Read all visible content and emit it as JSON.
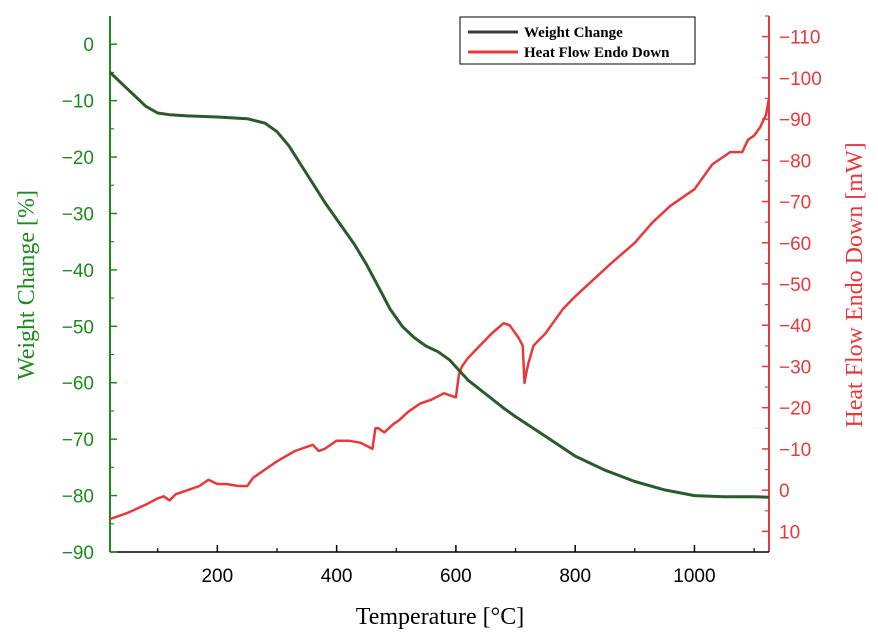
{
  "chart_data": {
    "type": "line",
    "xlabel": "Temperature [°C]",
    "ylabel_left": "Weight Change [%]",
    "ylabel_right": "Heat Flow Endo Down [mW]",
    "xlim": [
      20,
      1125
    ],
    "ylim_left": [
      -90,
      5
    ],
    "ylim_right": [
      15,
      -115
    ],
    "x_ticks": [
      200,
      400,
      600,
      800,
      1000
    ],
    "x_tick_labels": [
      "200",
      "400",
      "600",
      "800",
      "1000"
    ],
    "y_left_ticks": [
      0,
      -10,
      -20,
      -30,
      -40,
      -50,
      -60,
      -70,
      -80,
      -90
    ],
    "y_left_tick_labels": [
      "0",
      "−10",
      "−20",
      "−30",
      "−40",
      "−50",
      "−60",
      "−70",
      "−80",
      "−90"
    ],
    "y_right_ticks": [
      10,
      0,
      -10,
      -20,
      -30,
      -40,
      -50,
      -60,
      -70,
      -80,
      -90,
      -100,
      -110
    ],
    "y_right_tick_labels": [
      "10",
      "0",
      "−10",
      "−20",
      "−30",
      "−40",
      "−50",
      "−60",
      "−70",
      "−80",
      "−90",
      "−100",
      "−110"
    ],
    "legend_position": "top-right",
    "grid": false,
    "colors": {
      "left_axis": "#1e8a1e",
      "right_axis": "#e8383c",
      "weight_line": "#2d5a2d",
      "heat_line": "#e8383c",
      "legend_weight": "#3c3c3c"
    },
    "series": [
      {
        "name": "Weight Change",
        "axis": "left",
        "x": [
          20,
          40,
          60,
          80,
          100,
          120,
          150,
          200,
          250,
          280,
          300,
          320,
          350,
          380,
          400,
          430,
          450,
          470,
          490,
          510,
          530,
          550,
          570,
          590,
          600,
          620,
          650,
          680,
          700,
          750,
          800,
          850,
          900,
          950,
          1000,
          1050,
          1100,
          1125
        ],
        "y": [
          -5,
          -7,
          -9,
          -11,
          -12.2,
          -12.5,
          -12.7,
          -12.9,
          -13.2,
          -14,
          -15.5,
          -18,
          -23,
          -28,
          -31,
          -35.5,
          -39,
          -43,
          -47,
          -50,
          -52,
          -53.5,
          -54.5,
          -56,
          -57.2,
          -59.5,
          -62,
          -64.5,
          -66,
          -69.5,
          -73,
          -75.5,
          -77.5,
          -79,
          -80,
          -80.2,
          -80.2,
          -80.3
        ]
      },
      {
        "name": "Heat Flow Endo Down",
        "axis": "right",
        "x": [
          20,
          50,
          80,
          100,
          110,
          120,
          130,
          150,
          170,
          185,
          200,
          215,
          235,
          250,
          260,
          280,
          300,
          330,
          360,
          370,
          380,
          400,
          420,
          440,
          460,
          465,
          470,
          480,
          495,
          505,
          520,
          540,
          560,
          580,
          600,
          605,
          610,
          620,
          640,
          660,
          680,
          690,
          700,
          705,
          712,
          715,
          718,
          722,
          730,
          750,
          780,
          800,
          830,
          860,
          900,
          930,
          960,
          1000,
          1030,
          1060,
          1080,
          1090,
          1100,
          1110,
          1120,
          1125
        ],
        "y": [
          7,
          5.5,
          3.5,
          2,
          1.5,
          2.5,
          1,
          0,
          -1,
          -2.5,
          -1.5,
          -1.5,
          -1,
          -1,
          -3,
          -5,
          -7,
          -9.5,
          -11,
          -9.5,
          -10,
          -12,
          -12,
          -11.5,
          -10,
          -15,
          -15,
          -14,
          -16,
          -17,
          -19,
          -21,
          -22,
          -23.5,
          -22.5,
          -28,
          -30,
          -32,
          -35,
          -38,
          -40.5,
          -40,
          -38,
          -37,
          -35,
          -26,
          -28.5,
          -31,
          -35,
          -38,
          -44,
          -47,
          -51,
          -55,
          -60,
          -65,
          -69,
          -73,
          -79,
          -82,
          -82,
          -85,
          -86,
          -88,
          -91,
          -95
        ]
      }
    ]
  }
}
